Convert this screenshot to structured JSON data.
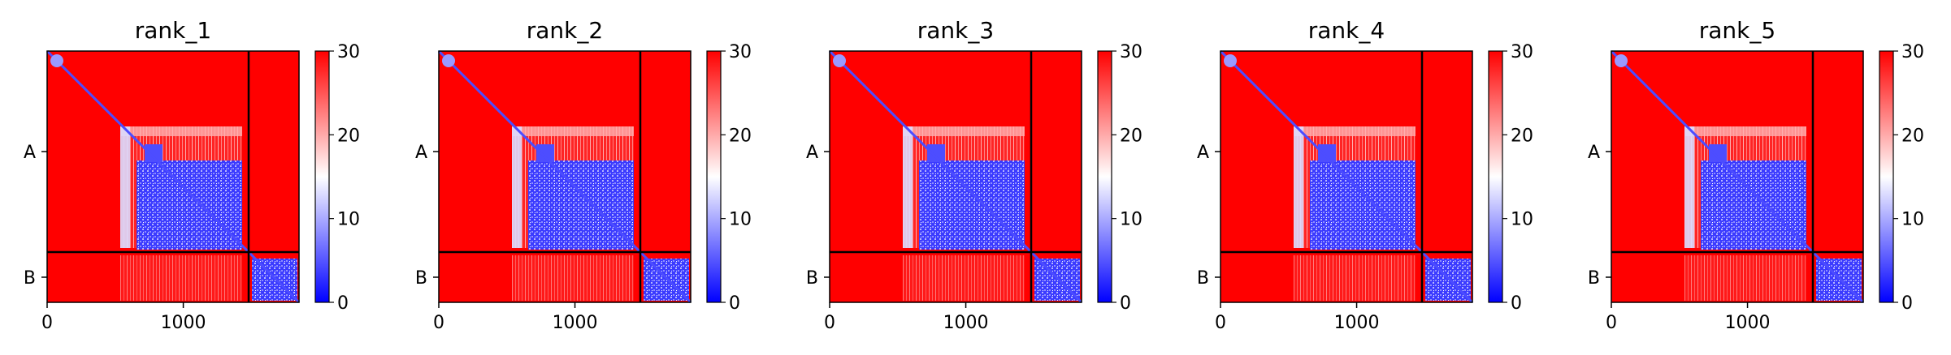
{
  "chart_data": {
    "type": "heatmap",
    "colormap": {
      "low": "#0000ff",
      "mid": "#ffffff",
      "high": "#ff0000",
      "range": [
        0,
        30
      ]
    },
    "colorbar": {
      "ticks": [
        0,
        10,
        20,
        30
      ]
    },
    "xlim": [
      0,
      1850
    ],
    "xticks": [
      0,
      1000
    ],
    "chain_boundary": 1480,
    "y_chain_labels": [
      "A",
      "B"
    ],
    "panels": [
      {
        "title": "rank_1"
      },
      {
        "title": "rank_2"
      },
      {
        "title": "rank_3"
      },
      {
        "title": "rank_4"
      },
      {
        "title": "rank_5"
      }
    ]
  }
}
